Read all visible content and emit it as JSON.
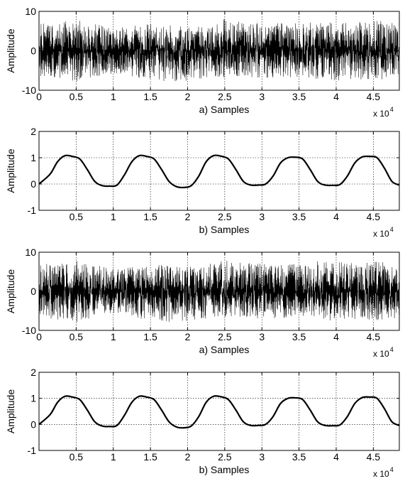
{
  "chart_data": [
    {
      "type": "line",
      "signal": "noise",
      "title": "a) Samples",
      "xlabel": "a) Samples",
      "ylabel": "Amplitude",
      "x_multiplier": "x 10",
      "x_multiplier_exp": "4",
      "xlim": [
        0,
        48500
      ],
      "ylim": [
        -10,
        10
      ],
      "grid": true,
      "xticks": [
        0,
        5000,
        10000,
        15000,
        20000,
        25000,
        30000,
        35000,
        40000,
        45000
      ],
      "xtick_labels": [
        "0",
        "0.5",
        "1",
        "1.5",
        "2",
        "2.5",
        "3",
        "3.5",
        "4",
        "4.5"
      ],
      "yticks": [
        -10,
        0,
        10
      ],
      "ytick_labels": [
        "-10",
        "0",
        "10"
      ],
      "envelope_x": [
        0,
        2500,
        5000,
        7500,
        10000,
        12500,
        15000,
        17500,
        20000,
        22500,
        25000,
        27500,
        30000,
        32500,
        35000,
        37500,
        40000,
        42500,
        45000,
        47500,
        48500
      ],
      "envelope_upper": [
        7.0,
        7.5,
        7.8,
        6.8,
        5.8,
        6.2,
        7.0,
        6.5,
        6.2,
        6.8,
        8.0,
        7.4,
        7.0,
        7.2,
        7.0,
        7.8,
        7.5,
        7.2,
        7.8,
        7.5,
        7.0
      ],
      "envelope_lower": [
        -6.5,
        -7.2,
        -8.5,
        -6.5,
        -5.8,
        -6.5,
        -7.5,
        -8.0,
        -7.5,
        -7.0,
        -6.8,
        -6.5,
        -7.0,
        -6.8,
        -7.0,
        -7.2,
        -7.5,
        -7.2,
        -7.5,
        -7.0,
        -6.8
      ]
    },
    {
      "type": "line",
      "signal": "smooth",
      "title": "b) Samples",
      "xlabel": "b) Samples",
      "ylabel": "Amplitude",
      "x_multiplier": "x 10",
      "x_multiplier_exp": "4",
      "xlim": [
        0,
        48500
      ],
      "ylim": [
        -1,
        2
      ],
      "grid": true,
      "xticks": [
        5000,
        10000,
        15000,
        20000,
        25000,
        30000,
        35000,
        40000,
        45000
      ],
      "xtick_labels": [
        "0.5",
        "1",
        "1.5",
        "2",
        "2.5",
        "3",
        "3.5",
        "4",
        "4.5"
      ],
      "yticks": [
        -1,
        0,
        1,
        2
      ],
      "ytick_labels": [
        "-1",
        "0",
        "1",
        "2"
      ],
      "x": [
        0,
        1500,
        2500,
        3500,
        4500,
        5500,
        6500,
        7500,
        8500,
        9500,
        10500,
        11500,
        12500,
        13500,
        14500,
        15500,
        16500,
        17500,
        18500,
        19500,
        20500,
        21500,
        22500,
        23500,
        24500,
        25500,
        26500,
        27500,
        28500,
        29500,
        30500,
        31500,
        32500,
        33500,
        34500,
        35500,
        36500,
        37500,
        38500,
        39500,
        40500,
        41500,
        42500,
        43500,
        44500,
        45500,
        46500,
        47500,
        48500
      ],
      "y": [
        0.0,
        0.38,
        0.85,
        1.08,
        1.05,
        0.95,
        0.55,
        0.1,
        -0.06,
        -0.08,
        -0.04,
        0.35,
        0.85,
        1.08,
        1.05,
        0.95,
        0.55,
        0.1,
        -0.1,
        -0.13,
        -0.06,
        0.3,
        0.85,
        1.08,
        1.06,
        0.95,
        0.55,
        0.1,
        -0.04,
        -0.04,
        0.0,
        0.3,
        0.8,
        1.0,
        1.02,
        0.95,
        0.55,
        0.1,
        -0.04,
        -0.05,
        -0.02,
        0.3,
        0.8,
        1.03,
        1.05,
        1.0,
        0.6,
        0.1,
        -0.04
      ]
    },
    {
      "type": "line",
      "signal": "noise",
      "title": "a) Samples",
      "xlabel": "a) Samples",
      "ylabel": "Amplitude",
      "x_multiplier": "x 10",
      "x_multiplier_exp": "4",
      "xlim": [
        0,
        48500
      ],
      "ylim": [
        -10,
        10
      ],
      "grid": true,
      "xticks": [
        0,
        5000,
        10000,
        15000,
        20000,
        25000,
        30000,
        35000,
        40000,
        45000
      ],
      "xtick_labels": [
        "0",
        "0.5",
        "1",
        "1.5",
        "2",
        "2.5",
        "3",
        "3.5",
        "4",
        "4.5"
      ],
      "yticks": [
        -10,
        0,
        10
      ],
      "ytick_labels": [
        "-10",
        "0",
        "10"
      ],
      "envelope_x": [
        0,
        2500,
        5000,
        7500,
        10000,
        12500,
        15000,
        17500,
        20000,
        22500,
        25000,
        27500,
        30000,
        32500,
        35000,
        37500,
        40000,
        42500,
        45000,
        47500,
        48500
      ],
      "envelope_upper": [
        7.0,
        7.5,
        7.8,
        6.8,
        5.8,
        6.2,
        7.0,
        6.5,
        6.2,
        6.8,
        8.0,
        7.4,
        7.0,
        7.2,
        7.0,
        7.8,
        7.5,
        7.2,
        7.8,
        7.5,
        7.0
      ],
      "envelope_lower": [
        -6.5,
        -7.2,
        -8.5,
        -6.5,
        -5.8,
        -6.5,
        -7.5,
        -8.0,
        -7.5,
        -7.0,
        -6.8,
        -6.5,
        -7.0,
        -6.8,
        -7.0,
        -7.2,
        -7.5,
        -7.2,
        -7.5,
        -7.0,
        -6.8
      ]
    },
    {
      "type": "line",
      "signal": "smooth",
      "title": "b) Samples",
      "xlabel": "b) Samples",
      "ylabel": "Amplitude",
      "x_multiplier": "x 10",
      "x_multiplier_exp": "4",
      "xlim": [
        0,
        48500
      ],
      "ylim": [
        -1,
        2
      ],
      "grid": true,
      "xticks": [
        5000,
        10000,
        15000,
        20000,
        25000,
        30000,
        35000,
        40000,
        45000
      ],
      "xtick_labels": [
        "0.5",
        "1",
        "1.5",
        "2",
        "2.5",
        "3",
        "3.5",
        "4",
        "4.5"
      ],
      "yticks": [
        -1,
        0,
        1,
        2
      ],
      "ytick_labels": [
        "-1",
        "0",
        "1",
        "2"
      ],
      "x": [
        0,
        1500,
        2500,
        3500,
        4500,
        5500,
        6500,
        7500,
        8500,
        9500,
        10500,
        11500,
        12500,
        13500,
        14500,
        15500,
        16500,
        17500,
        18500,
        19500,
        20500,
        21500,
        22500,
        23500,
        24500,
        25500,
        26500,
        27500,
        28500,
        29500,
        30500,
        31500,
        32500,
        33500,
        34500,
        35500,
        36500,
        37500,
        38500,
        39500,
        40500,
        41500,
        42500,
        43500,
        44500,
        45500,
        46500,
        47500,
        48500
      ],
      "y": [
        0.0,
        0.38,
        0.85,
        1.08,
        1.05,
        0.95,
        0.55,
        0.1,
        -0.06,
        -0.08,
        -0.04,
        0.35,
        0.85,
        1.08,
        1.05,
        0.95,
        0.55,
        0.1,
        -0.1,
        -0.13,
        -0.06,
        0.3,
        0.85,
        1.08,
        1.06,
        0.95,
        0.55,
        0.1,
        -0.04,
        -0.04,
        0.0,
        0.3,
        0.8,
        1.0,
        1.02,
        0.95,
        0.55,
        0.1,
        -0.04,
        -0.05,
        -0.02,
        0.3,
        0.8,
        1.03,
        1.05,
        1.0,
        0.6,
        0.1,
        -0.04
      ]
    }
  ]
}
